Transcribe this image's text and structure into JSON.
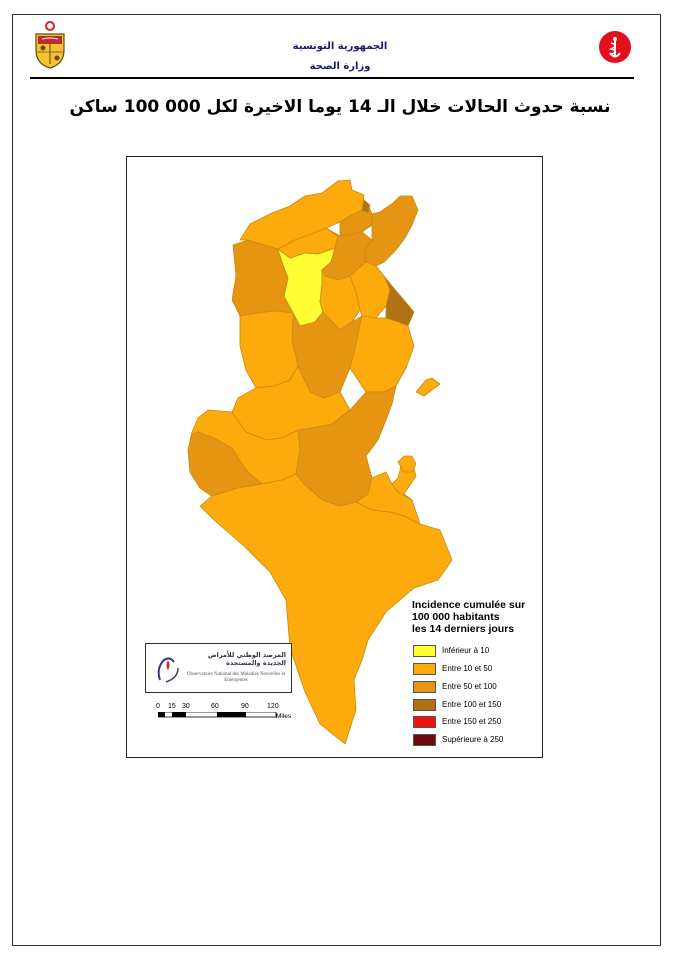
{
  "header": {
    "country_ar": "الجمهورية التونسية",
    "ministry_ar": "وزارة الصحة"
  },
  "title": "نسبة حدوث الحالات خلال الـ 14 يوما الاخيرة لكل 000 100 ساكن",
  "colors": {
    "inferior_10": "#ffff33",
    "between_10_50": "#fdaa0c",
    "between_50_100": "#e69513",
    "between_100_150": "#b07214",
    "between_150_250": "#ee1111",
    "superior_250": "#6e0a0a"
  },
  "legend": {
    "title_line1": "Incidence cumulée sur",
    "title_line2": "100 000 habitants",
    "title_line3": "les 14 derniers jours",
    "items": [
      {
        "label": "Inférieur à 10",
        "color": "#ffff33"
      },
      {
        "label": "Entre 10 et 50",
        "color": "#fdaa0c"
      },
      {
        "label": "Entre 50 et 100",
        "color": "#e69513"
      },
      {
        "label": "Entre 100 et 150",
        "color": "#b07214"
      },
      {
        "label": "Entre 150 et 250",
        "color": "#ee1111"
      },
      {
        "label": "Supérieure à 250",
        "color": "#6e0a0a"
      }
    ]
  },
  "observatory": {
    "name_ar": "المرصد الوطني للأمراض الجديدة والمستجدة",
    "name_fr": "Observatoire National des Maladies Nouvelles et Emergentes"
  },
  "scale": {
    "ticks": [
      "0",
      "15",
      "30",
      "60",
      "90",
      "120"
    ],
    "unit": "Miles"
  }
}
